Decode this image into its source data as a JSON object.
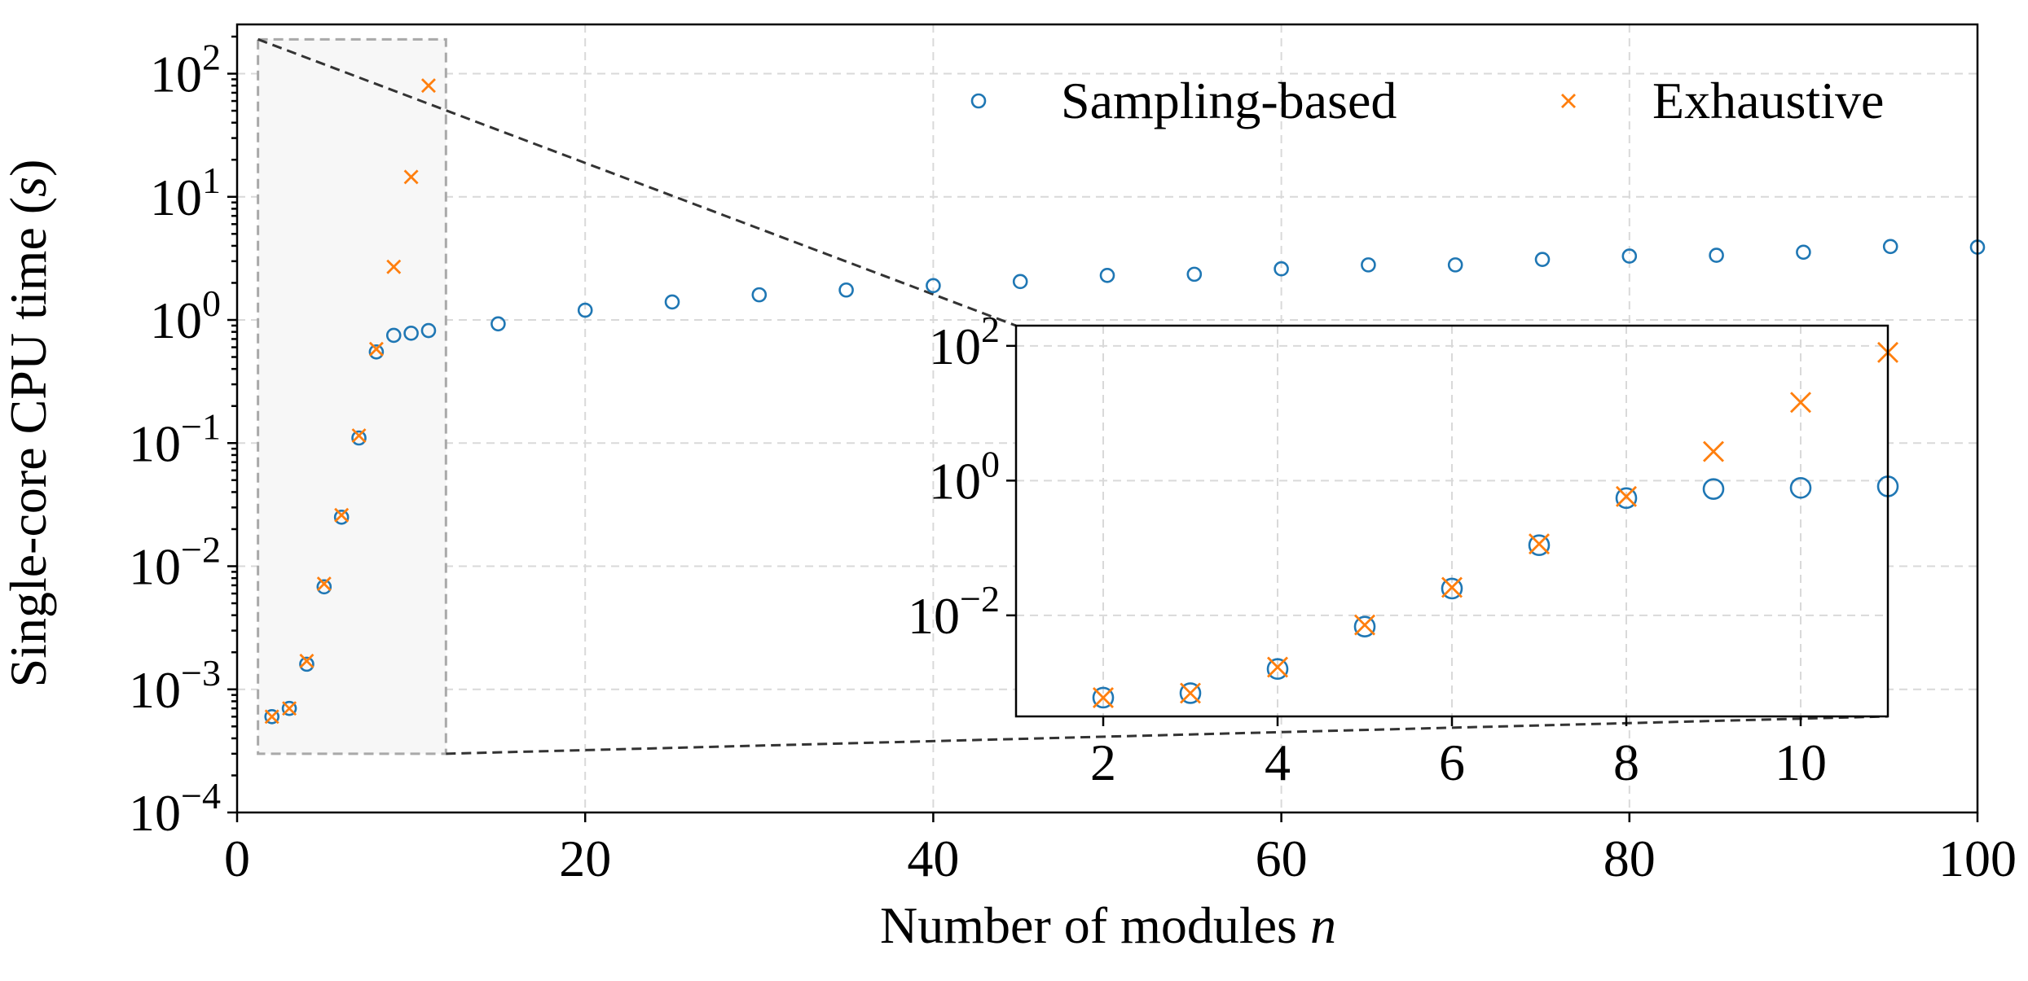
{
  "chart_data": {
    "type": "scatter",
    "title": "",
    "xlabel": "Number of modules",
    "xlabel_var": "n",
    "ylabel": "Single-core CPU time (",
    "ylabel_var": "s",
    "ylabel_close": ")",
    "yscale": "log",
    "xlim": [
      0,
      100
    ],
    "ylim_exponent": [
      -4,
      2.4
    ],
    "x_ticks": [
      "0",
      "20",
      "40",
      "60",
      "80",
      "100"
    ],
    "y_ticks": [
      {
        "base": "10",
        "exp": "2"
      },
      {
        "base": "10",
        "exp": "1"
      },
      {
        "base": "10",
        "exp": "0"
      },
      {
        "base": "10",
        "exp": "−1"
      },
      {
        "base": "10",
        "exp": "−2"
      },
      {
        "base": "10",
        "exp": "−3"
      },
      {
        "base": "10",
        "exp": "−4"
      }
    ],
    "grid": true,
    "legend_position": "top-right",
    "series": [
      {
        "name": "Sampling-based",
        "marker": "circle",
        "color": "#1f77b4",
        "x": [
          2,
          3,
          4,
          5,
          6,
          7,
          8,
          9,
          10,
          11,
          15,
          20,
          25,
          30,
          35,
          40,
          45,
          50,
          55,
          60,
          65,
          70,
          75,
          80,
          85,
          90,
          95,
          100
        ],
        "y": [
          0.0006,
          0.0007,
          0.0016,
          0.0068,
          0.025,
          0.11,
          0.55,
          0.75,
          0.78,
          0.82,
          0.93,
          1.2,
          1.4,
          1.6,
          1.75,
          1.9,
          2.05,
          2.3,
          2.35,
          2.6,
          2.8,
          2.8,
          3.1,
          3.3,
          3.35,
          3.55,
          3.95,
          3.9
        ]
      },
      {
        "name": "Exhaustive",
        "marker": "x",
        "color": "#ff7f0e",
        "x": [
          2,
          3,
          4,
          5,
          6,
          7,
          8,
          9,
          10,
          11
        ],
        "y": [
          0.0006,
          0.0007,
          0.0017,
          0.0072,
          0.026,
          0.115,
          0.58,
          2.7,
          14.5,
          80
        ]
      }
    ],
    "inset": {
      "xlim": [
        1,
        11
      ],
      "ylim_exponent": [
        -3.5,
        2.3
      ],
      "x_ticks": [
        "2",
        "4",
        "6",
        "8",
        "10"
      ],
      "y_ticks": [
        {
          "base": "10",
          "exp": "2"
        },
        {
          "base": "10",
          "exp": "0"
        },
        {
          "base": "10",
          "exp": "−2"
        }
      ],
      "zoom_region": {
        "x": [
          1.2,
          12
        ],
        "y": [
          0.0003,
          190
        ]
      }
    }
  }
}
